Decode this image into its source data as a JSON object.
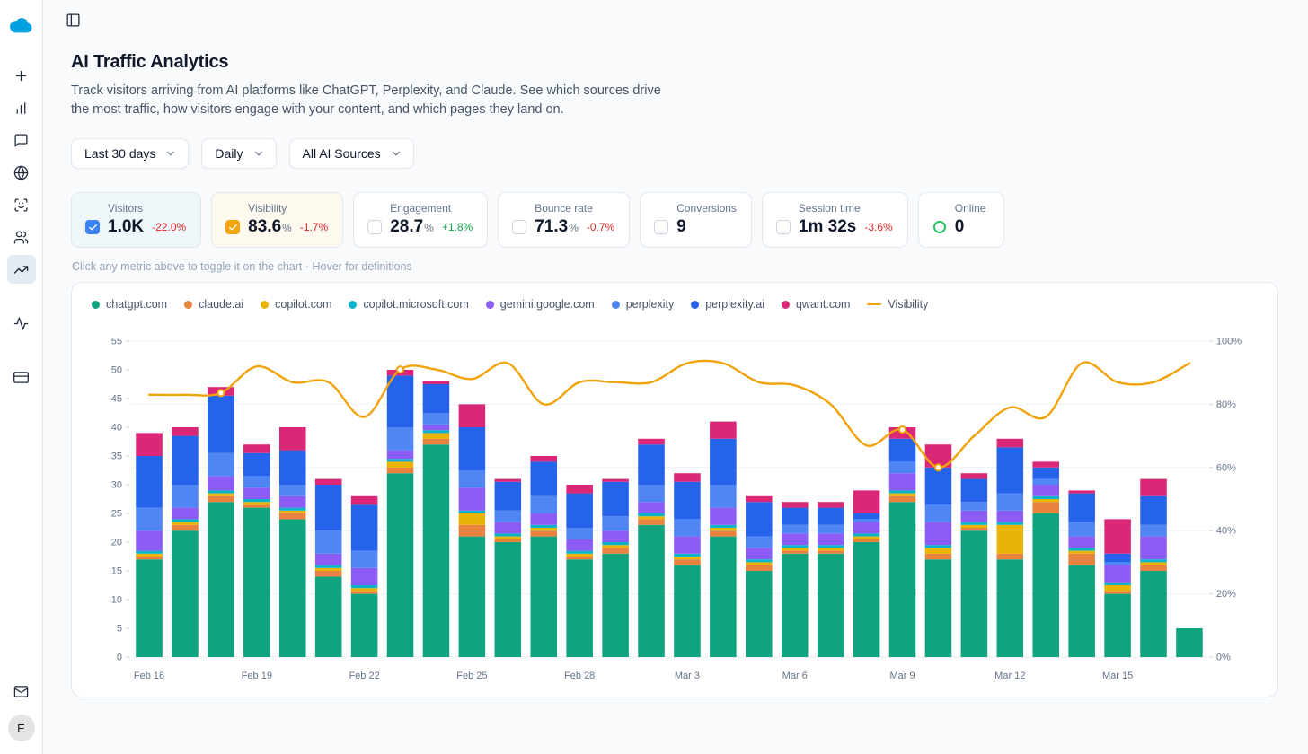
{
  "sidebar": {
    "logo": "cloud-logo",
    "avatar_initial": "E",
    "items": [
      "new",
      "analytics",
      "messages",
      "web",
      "scan-face",
      "audience",
      "traffic-trends",
      "activity",
      "billing",
      "mail"
    ]
  },
  "header": {
    "title": "AI Traffic Analytics",
    "subtitle": "Track visitors arriving from AI platforms like ChatGPT, Perplexity, and Claude. See which sources drive the most traffic, how visitors engage with your content, and which pages they land on."
  },
  "filters": {
    "date_range": "Last 30 days",
    "granularity": "Daily",
    "source": "All AI Sources"
  },
  "metrics": [
    {
      "label": "Visitors",
      "value": "1.0K",
      "delta": "-22.0%",
      "delta_dir": "down",
      "state": "checked",
      "accent": "#3b82f6",
      "bg": "#f0f7fb"
    },
    {
      "label": "Visibility",
      "value": "83.6",
      "suffix": "%",
      "delta": "-1.7%",
      "delta_dir": "down",
      "state": "checked",
      "accent": "#f5a50b",
      "bg": "#fdf9ee"
    },
    {
      "label": "Engagement",
      "value": "28.7",
      "suffix": "%",
      "delta": "+1.8%",
      "delta_dir": "up",
      "state": "unchecked"
    },
    {
      "label": "Bounce rate",
      "value": "71.3",
      "suffix": "%",
      "delta": "-0.7%",
      "delta_dir": "down",
      "state": "unchecked"
    },
    {
      "label": "Conversions",
      "value": "9",
      "state": "unchecked"
    },
    {
      "label": "Session time",
      "value": "1m 32s",
      "delta": "-3.6%",
      "delta_dir": "down",
      "state": "unchecked"
    },
    {
      "label": "Online",
      "value": "0",
      "state": "indicator",
      "accent": "#22c55e"
    }
  ],
  "hint": "Click any metric above to toggle it on the chart · Hover for definitions",
  "chart_data": {
    "type": "stacked-bar+line",
    "dates": [
      "Feb 16",
      "Feb 17",
      "Feb 18",
      "Feb 19",
      "Feb 20",
      "Feb 21",
      "Feb 22",
      "Feb 23",
      "Feb 24",
      "Feb 25",
      "Feb 26",
      "Feb 27",
      "Feb 28",
      "Mar 1",
      "Mar 2",
      "Mar 3",
      "Mar 4",
      "Mar 5",
      "Mar 6",
      "Mar 7",
      "Mar 8",
      "Mar 9",
      "Mar 10",
      "Mar 11",
      "Mar 12",
      "Mar 13",
      "Mar 14",
      "Mar 15",
      "Mar 16",
      "Mar 17"
    ],
    "x_tick_every": 3,
    "left_axis": {
      "min": 0,
      "max": 55,
      "step": 5
    },
    "right_axis": {
      "min": 0,
      "max": 100,
      "step": 20,
      "suffix": "%"
    },
    "series": [
      {
        "name": "chatgpt.com",
        "color": "#10a37f",
        "values": [
          17,
          22,
          27,
          26,
          24,
          14,
          11,
          32,
          37,
          21,
          20,
          21,
          17,
          18,
          23,
          16,
          21,
          15,
          18,
          18,
          20,
          27,
          17,
          22,
          17,
          25,
          16,
          11,
          15,
          5
        ]
      },
      {
        "name": "claude.ai",
        "color": "#e8823e",
        "values": [
          0.5,
          1,
          1,
          0.5,
          1,
          1,
          0.5,
          1,
          1,
          2,
          0.5,
          1,
          0.5,
          1,
          1,
          1,
          1,
          1,
          0.5,
          0.5,
          0.5,
          1,
          1,
          0.5,
          1,
          2,
          2,
          0.5,
          1,
          0
        ]
      },
      {
        "name": "copilot.com",
        "color": "#eab308",
        "values": [
          0.5,
          0.5,
          0.5,
          0.5,
          0.5,
          0.5,
          0.5,
          1,
          1,
          2,
          0.5,
          0.5,
          0.5,
          0.5,
          0.5,
          0.5,
          0.5,
          0.5,
          0.5,
          0.5,
          0.5,
          0.5,
          1,
          0.5,
          5,
          0.5,
          0.5,
          1,
          0.5,
          0
        ]
      },
      {
        "name": "copilot.microsoft.com",
        "color": "#0bb4c9",
        "values": [
          0.5,
          0.5,
          0.5,
          0.5,
          0.5,
          0.5,
          0.5,
          0.5,
          0.5,
          0.5,
          0.5,
          0.5,
          0.5,
          0.5,
          0.5,
          0.5,
          0.5,
          0.5,
          0.5,
          0.5,
          0.5,
          0.5,
          0.5,
          0.5,
          0.5,
          0.5,
          0.5,
          0.5,
          0.5,
          0
        ]
      },
      {
        "name": "gemini.google.com",
        "color": "#8b5cf6",
        "values": [
          3.5,
          2,
          2.5,
          2,
          2,
          2,
          3,
          1.5,
          1,
          4,
          2,
          2,
          2,
          2,
          2,
          3,
          3,
          2,
          2,
          2,
          2,
          3,
          4,
          2,
          2,
          2,
          2,
          3,
          4,
          0
        ]
      },
      {
        "name": "perplexity",
        "color": "#4f86f3",
        "values": [
          4,
          4,
          4,
          2,
          2,
          4,
          3,
          4,
          2,
          3,
          2,
          3,
          2,
          2.5,
          3,
          3,
          4,
          2,
          1.5,
          1.5,
          0.5,
          2,
          3,
          1.5,
          3,
          1,
          2.5,
          0.5,
          2,
          0
        ]
      },
      {
        "name": "perplexity.ai",
        "color": "#2563eb",
        "values": [
          9,
          8.5,
          10,
          4,
          6,
          8,
          8,
          9,
          5,
          7.5,
          5,
          6,
          6,
          6,
          7,
          6.5,
          8,
          6,
          3,
          3,
          1,
          4,
          6.5,
          4,
          8,
          2,
          5,
          1.5,
          5,
          0
        ]
      },
      {
        "name": "qwant.com",
        "color": "#db2777",
        "values": [
          4,
          1.5,
          1.5,
          1.5,
          4,
          1,
          1.5,
          1,
          0.5,
          4,
          0.5,
          1,
          1.5,
          0.5,
          1,
          1.5,
          3,
          1,
          1,
          1,
          4,
          2,
          4,
          1,
          1.5,
          1,
          0.5,
          6,
          3,
          0
        ]
      }
    ],
    "line": {
      "name": "Visibility",
      "color": "#f0a30a",
      "axis": "right",
      "values": [
        83,
        83,
        83.6,
        92,
        87,
        87,
        76,
        91,
        91,
        88,
        93,
        80,
        87,
        87,
        87,
        93,
        93,
        87,
        86,
        80,
        67,
        72,
        60,
        70,
        79,
        76,
        93,
        87,
        87,
        93
      ],
      "marker_indices": [
        2,
        7,
        21,
        22
      ]
    }
  }
}
